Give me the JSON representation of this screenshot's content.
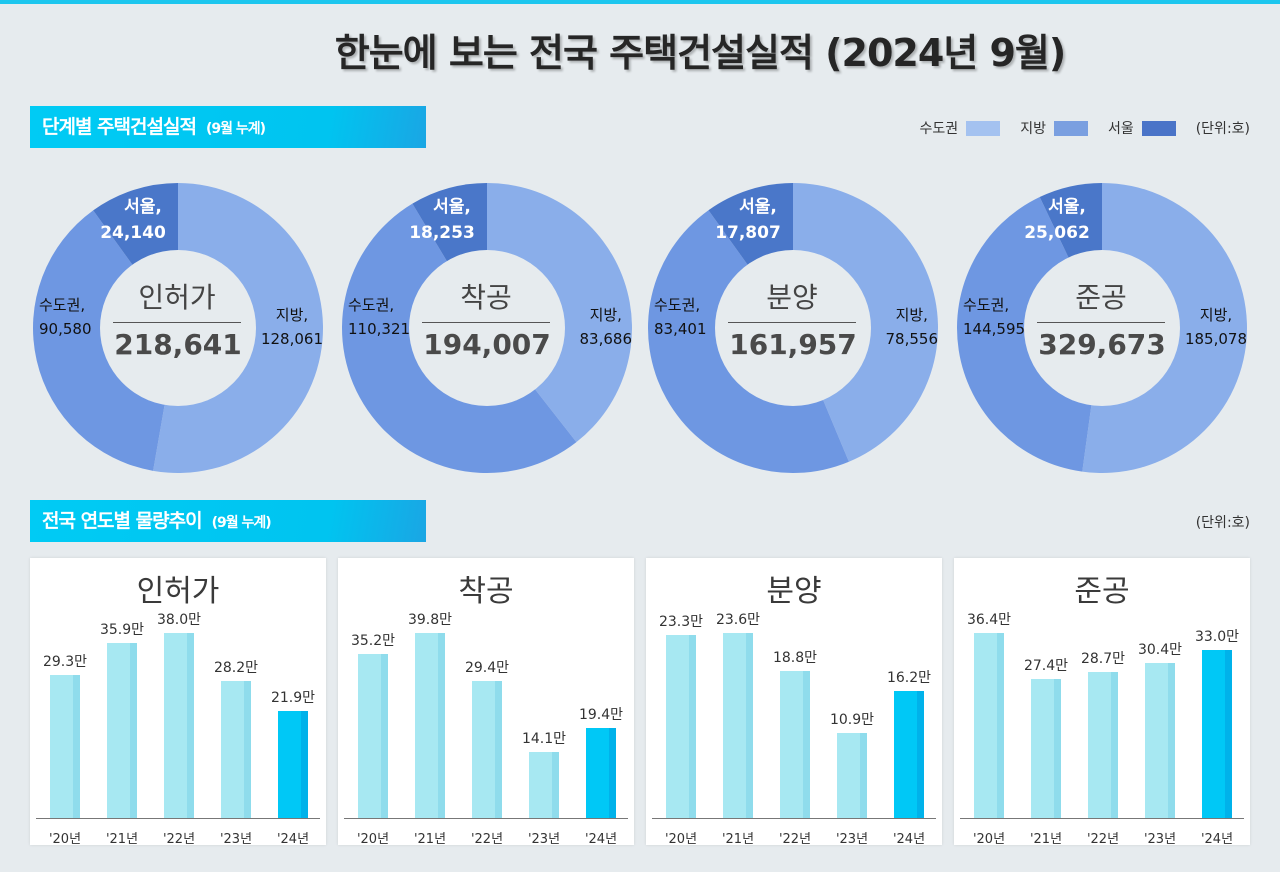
{
  "title": "한눈에 보는 전국 주택건설실적  (2024년 9월)",
  "section1": {
    "title": "단계별 주택건설실적",
    "sub": "(9월 누계)"
  },
  "section2": {
    "title": "전국 연도별 물량추이",
    "sub": "(9월 누계)"
  },
  "legend": {
    "items": [
      {
        "label": "수도권",
        "color": "#a4c2f0"
      },
      {
        "label": "지방",
        "color": "#7a9fe0"
      },
      {
        "label": "서울",
        "color": "#4a74c8"
      }
    ],
    "unit": "(단위:호)"
  },
  "unit2": "(단위:호)",
  "colors": {
    "region": "#8aaeea",
    "metro": "#6e97e2",
    "seoul": "#4a77c9",
    "hole": "#e6ebee"
  },
  "chart_data": [
    {
      "type": "pie",
      "name": "인허가",
      "total": "218,641",
      "slices": [
        {
          "label": "지방,",
          "value": 128061,
          "text": "128,061"
        },
        {
          "label": "수도권,",
          "value": 90580,
          "text": "90,580"
        },
        {
          "label": "서울,",
          "value": 24140,
          "text": "24,140"
        }
      ]
    },
    {
      "type": "pie",
      "name": "착공",
      "total": "194,007",
      "slices": [
        {
          "label": "지방,",
          "value": 83686,
          "text": "83,686"
        },
        {
          "label": "수도권,",
          "value": 110321,
          "text": "110,321"
        },
        {
          "label": "서울,",
          "value": 18253,
          "text": "18,253"
        }
      ]
    },
    {
      "type": "pie",
      "name": "분양",
      "total": "161,957",
      "slices": [
        {
          "label": "지방,",
          "value": 78556,
          "text": "78,556"
        },
        {
          "label": "수도권,",
          "value": 83401,
          "text": "83,401"
        },
        {
          "label": "서울,",
          "value": 17807,
          "text": "17,807"
        }
      ]
    },
    {
      "type": "pie",
      "name": "준공",
      "total": "329,673",
      "slices": [
        {
          "label": "지방,",
          "value": 185078,
          "text": "185,078"
        },
        {
          "label": "수도권,",
          "value": 144595,
          "text": "144,595"
        },
        {
          "label": "서울,",
          "value": 25062,
          "text": "25,062"
        }
      ]
    },
    {
      "type": "bar",
      "title": "인허가",
      "categories": [
        "'20년",
        "'21년",
        "'22년",
        "'23년",
        "'24년"
      ],
      "values": [
        29.3,
        35.9,
        38.0,
        28.2,
        21.9
      ],
      "labels": [
        "29.3만",
        "35.9만",
        "38.0만",
        "28.2만",
        "21.9만"
      ]
    },
    {
      "type": "bar",
      "title": "착공",
      "categories": [
        "'20년",
        "'21년",
        "'22년",
        "'23년",
        "'24년"
      ],
      "values": [
        35.2,
        39.8,
        29.4,
        14.1,
        19.4
      ],
      "labels": [
        "35.2만",
        "39.8만",
        "29.4만",
        "14.1만",
        "19.4만"
      ]
    },
    {
      "type": "bar",
      "title": "분양",
      "categories": [
        "'20년",
        "'21년",
        "'22년",
        "'23년",
        "'24년"
      ],
      "values": [
        23.3,
        23.6,
        18.8,
        10.9,
        16.2
      ],
      "labels": [
        "23.3만",
        "23.6만",
        "18.8만",
        "10.9만",
        "16.2만"
      ]
    },
    {
      "type": "bar",
      "title": "준공",
      "categories": [
        "'20년",
        "'21년",
        "'22년",
        "'23년",
        "'24년"
      ],
      "values": [
        36.4,
        27.4,
        28.7,
        30.4,
        33.0
      ],
      "labels": [
        "36.4만",
        "27.4만",
        "28.7만",
        "30.4만",
        "33.0만"
      ]
    }
  ]
}
